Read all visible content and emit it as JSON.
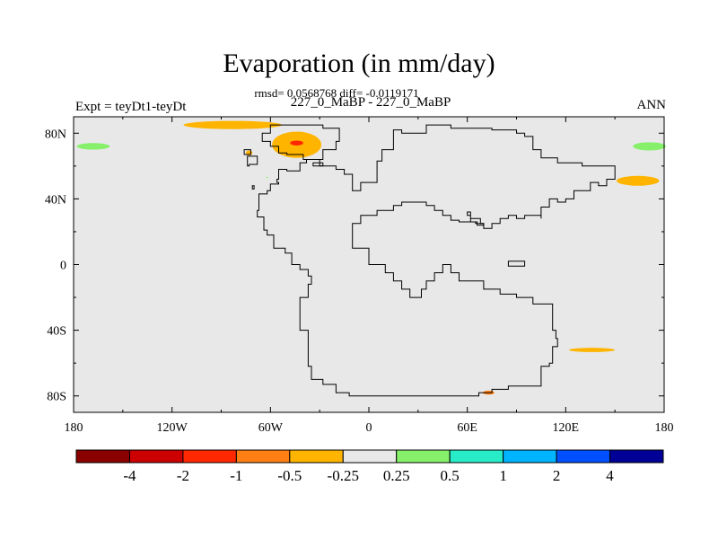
{
  "title": "Evaporation (in mm/day)",
  "stats": "rmsd= 0.0568768 diff= -0.0119171",
  "subtitle": "227_0_MaBP - 227_0_MaBP",
  "left_label": "Expt = teyDt1-teyDt",
  "right_label": "ANN",
  "colors": {
    "background": "#e8e8e8",
    "land_outline": "#000000",
    "colorbar": [
      "#8a0000",
      "#cc0000",
      "#ff2800",
      "#ff7f14",
      "#ffb400",
      "#e8e8e8",
      "#86f06a",
      "#28ecc8",
      "#00b4ff",
      "#0050ff",
      "#000096"
    ]
  },
  "chart_data": {
    "type": "heatmap",
    "projection": "cylindrical equidistant",
    "title": "Evaporation (in mm/day)",
    "x_ticks": [
      "180",
      "120W",
      "60W",
      "0",
      "60E",
      "120E",
      "180"
    ],
    "y_ticks": [
      "80N",
      "40N",
      "0",
      "40S",
      "80S"
    ],
    "xlim": [
      -180,
      180
    ],
    "ylim": [
      -90,
      90
    ],
    "colorbar_labels": [
      "-4",
      "-2",
      "-1",
      "-0.5",
      "-0.25",
      "0.25",
      "0.5",
      "1",
      "2",
      "4"
    ],
    "levels": [
      -4,
      -2,
      -1,
      -0.5,
      -0.25,
      0.25,
      0.5,
      1,
      2,
      4
    ],
    "anomaly_patches": [
      {
        "lon": -83,
        "lat": 85,
        "rlon": 30,
        "rlat": 2.5,
        "color": "#ffb400"
      },
      {
        "lon": -44,
        "lat": 73,
        "rlon": 15,
        "rlat": 8,
        "color": "#ffb400"
      },
      {
        "lon": -44,
        "lat": 74,
        "rlon": 4,
        "rlat": 1.5,
        "color": "#ff2800"
      },
      {
        "lon": -73,
        "lat": 68,
        "rlon": 2,
        "rlat": 1.5,
        "color": "#ffb400"
      },
      {
        "lon": -168,
        "lat": 72,
        "rlon": 10,
        "rlat": 2,
        "color": "#86f06a"
      },
      {
        "lon": 171,
        "lat": 72,
        "rlon": 10,
        "rlat": 2.5,
        "color": "#86f06a"
      },
      {
        "lon": 164,
        "lat": 51,
        "rlon": 13,
        "rlat": 3,
        "color": "#ffb400"
      },
      {
        "lon": 136,
        "lat": -52,
        "rlon": 14,
        "rlat": 1.3,
        "color": "#ffb400"
      },
      {
        "lon": 73,
        "lat": -78,
        "rlon": 3.5,
        "rlat": 1.2,
        "color": "#ff7f14"
      },
      {
        "lon": -62,
        "lat": 53,
        "rlon": 0.5,
        "rlat": 0.5,
        "color": "#86f06a"
      }
    ],
    "land_outline": [
      [
        -60,
        85
      ],
      [
        -28,
        85
      ],
      [
        -28,
        83
      ],
      [
        -18,
        83
      ],
      [
        -18,
        75
      ],
      [
        -20,
        75
      ],
      [
        -20,
        70
      ],
      [
        -26,
        70
      ],
      [
        -28,
        64
      ],
      [
        -38,
        62
      ],
      [
        -42,
        57
      ],
      [
        -50,
        58
      ],
      [
        -55,
        52
      ],
      [
        -56,
        50
      ],
      [
        -55,
        49
      ],
      [
        -60,
        49
      ],
      [
        -60,
        45
      ],
      [
        -62,
        43
      ],
      [
        -67,
        43
      ],
      [
        -67,
        33
      ],
      [
        -68,
        29
      ],
      [
        -64,
        27
      ],
      [
        -64,
        21
      ],
      [
        -62,
        18
      ],
      [
        -58,
        18
      ],
      [
        -58,
        10
      ],
      [
        -51,
        7
      ],
      [
        -47,
        0
      ],
      [
        -42,
        -3
      ],
      [
        -37,
        -7
      ],
      [
        -35,
        -12
      ],
      [
        -37,
        -20
      ],
      [
        -42,
        -23
      ],
      [
        -42,
        -40
      ],
      [
        -37,
        -45
      ],
      [
        -37,
        -62
      ],
      [
        -35,
        -70
      ],
      [
        -28,
        -73
      ],
      [
        -20,
        -78
      ],
      [
        -12,
        -78
      ],
      [
        -12,
        -80
      ],
      [
        60,
        -80
      ],
      [
        67,
        -78
      ],
      [
        75,
        -78
      ],
      [
        75,
        -76
      ],
      [
        85,
        -74
      ],
      [
        105,
        -74
      ],
      [
        105,
        -62
      ],
      [
        110,
        -60
      ],
      [
        112,
        -50
      ],
      [
        115,
        -45
      ],
      [
        114,
        -40
      ],
      [
        112,
        -36
      ],
      [
        112,
        -24
      ],
      [
        100,
        -20
      ],
      [
        90,
        -18
      ],
      [
        80,
        -15
      ],
      [
        70,
        -10
      ],
      [
        60,
        -10
      ],
      [
        55,
        -5
      ],
      [
        50,
        0
      ],
      [
        45,
        -5
      ],
      [
        40,
        -10
      ],
      [
        35,
        -15
      ],
      [
        32,
        -20
      ],
      [
        25,
        -15
      ],
      [
        20,
        -10
      ],
      [
        15,
        -5
      ],
      [
        10,
        0
      ],
      [
        0,
        10
      ],
      [
        -10,
        15
      ],
      [
        -10,
        25
      ],
      [
        -5,
        30
      ],
      [
        5,
        33
      ],
      [
        10,
        33
      ],
      [
        15,
        36
      ],
      [
        20,
        38
      ],
      [
        25,
        38
      ],
      [
        30,
        38
      ],
      [
        35,
        36
      ],
      [
        40,
        33
      ],
      [
        45,
        30
      ],
      [
        50,
        27
      ],
      [
        55,
        26
      ],
      [
        60,
        26
      ],
      [
        65,
        25
      ],
      [
        70,
        22
      ],
      [
        75,
        25
      ],
      [
        80,
        28
      ],
      [
        85,
        30
      ],
      [
        90,
        28
      ],
      [
        95,
        30
      ],
      [
        100,
        30
      ],
      [
        105,
        28
      ],
      [
        105,
        35
      ],
      [
        110,
        40
      ],
      [
        115,
        38
      ],
      [
        120,
        40
      ],
      [
        125,
        45
      ],
      [
        130,
        45
      ],
      [
        135,
        50
      ],
      [
        140,
        48
      ],
      [
        145,
        52
      ],
      [
        150,
        55
      ],
      [
        150,
        60
      ],
      [
        140,
        60
      ],
      [
        130,
        62
      ],
      [
        115,
        65
      ],
      [
        105,
        70
      ],
      [
        100,
        73
      ],
      [
        100,
        78
      ],
      [
        95,
        80
      ],
      [
        90,
        82
      ],
      [
        75,
        83
      ],
      [
        60,
        83
      ],
      [
        50,
        85
      ],
      [
        38,
        85
      ],
      [
        35,
        80
      ],
      [
        20,
        82
      ],
      [
        15,
        79
      ],
      [
        15,
        70
      ],
      [
        8,
        63
      ],
      [
        5,
        58
      ],
      [
        5,
        50
      ],
      [
        0,
        50
      ],
      [
        -5,
        45
      ],
      [
        -10,
        55
      ],
      [
        -15,
        58
      ],
      [
        -20,
        60
      ],
      [
        -30,
        64
      ],
      [
        -40,
        67
      ],
      [
        -50,
        68
      ],
      [
        -55,
        72
      ],
      [
        -60,
        75
      ],
      [
        -65,
        80
      ],
      [
        -60,
        85
      ]
    ],
    "inland_outlines": [
      [
        [
          68,
          28
        ],
        [
          62,
          32
        ],
        [
          60,
          30
        ],
        [
          62,
          26
        ],
        [
          66,
          24
        ],
        [
          70,
          25
        ],
        [
          68,
          28
        ]
      ],
      [
        [
          85,
          -1
        ],
        [
          95,
          -1
        ],
        [
          95,
          2
        ],
        [
          85,
          2
        ],
        [
          85,
          -1
        ]
      ]
    ],
    "island_outlines": [
      [
        [
          -76,
          70
        ],
        [
          -72,
          70
        ],
        [
          -72,
          67
        ],
        [
          -76,
          67
        ],
        [
          -76,
          70
        ]
      ],
      [
        [
          -74,
          66
        ],
        [
          -68,
          66
        ],
        [
          -68,
          61
        ],
        [
          -73,
          60
        ],
        [
          -74,
          66
        ]
      ],
      [
        [
          -71,
          46
        ],
        [
          -70,
          46
        ],
        [
          -70,
          48
        ],
        [
          -71,
          48
        ],
        [
          -71,
          46
        ]
      ],
      [
        [
          -34,
          62
        ],
        [
          -28,
          62
        ],
        [
          -28,
          60
        ],
        [
          -34,
          60
        ],
        [
          -34,
          62
        ]
      ]
    ]
  }
}
